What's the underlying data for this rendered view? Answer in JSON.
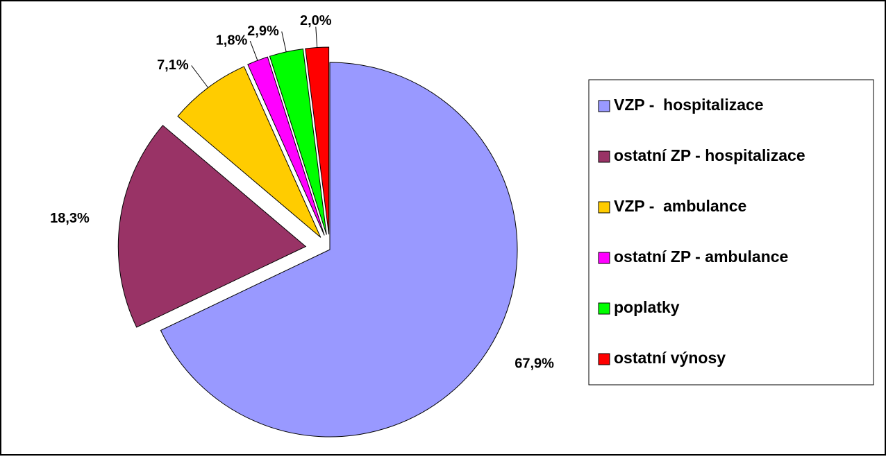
{
  "chart_data": {
    "type": "pie",
    "categories": [
      "VZP -  hospitalizace",
      "ostatní ZP - hospitalizace",
      "VZP -  ambulance",
      "ostatní ZP - ambulance",
      "poplatky",
      "ostatní výnosy"
    ],
    "values": [
      67.9,
      18.3,
      7.1,
      1.8,
      2.9,
      2.0
    ],
    "value_labels": [
      "67,9%",
      "18,3%",
      "7,1%",
      "1,8%",
      "2,9%",
      "2,0%"
    ],
    "colors": [
      "#9999ff",
      "#993366",
      "#ffcc00",
      "#ff00ff",
      "#00ff00",
      "#ff0000"
    ],
    "legend": "right"
  }
}
